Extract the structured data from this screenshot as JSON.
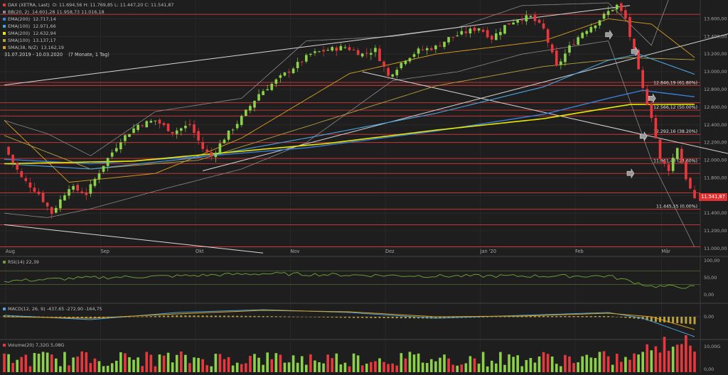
{
  "colors": {
    "background": "#1e1e1e",
    "grid": "#2f2f2f",
    "up_candle": "#8bd14a",
    "down_candle": "#e8383d",
    "fib_line": "#d63a3a",
    "ema200": "#3b7fd9",
    "ema100": "#4aa3df",
    "sma200": "#e8e800",
    "sma100": "#b8a040",
    "sma38": "#d9a020",
    "bollinger": "#8a8a8a",
    "trendline": "#d8d8d8",
    "rsi": "#6a9a3a",
    "macd": "#4aa3df",
    "signal": "#d9a020",
    "volume_up": "#8bd14a",
    "volume_down": "#e8383d"
  },
  "legend": [
    {
      "label": "DAX (XETRA, Last)",
      "values": "O: 11.694,56  H: 11.769,85  L: 11.447,20  C: 11.541,87",
      "color": "#e8383d"
    },
    {
      "label": "BB(20, 2)",
      "values": "14.601,28  11.958,73  11.016,18",
      "color": "#8a8a8a"
    },
    {
      "label": "EMA(200)",
      "values": "12.717,14",
      "color": "#3b7fd9"
    },
    {
      "label": "EMA(100)",
      "values": "12.971,66",
      "color": "#4aa3df"
    },
    {
      "label": "SMA(200)",
      "values": "12.632,94",
      "color": "#e8e800"
    },
    {
      "label": "SMA(100)",
      "values": "13.137,17",
      "color": "#b8a040"
    },
    {
      "label": "SMA(38, N/Z)",
      "values": "13.162,19",
      "color": "#d9a020"
    }
  ],
  "range_label": "31.07.2019 - 10.03.2020",
  "range_detail": "(7 Monate, 1 Tag)",
  "current_price_label": "11.541,87",
  "rsi_legend": {
    "label": "RSI(14)",
    "value": "22,39"
  },
  "macd_legend": {
    "label": "MACD(12, 26, 9)",
    "values": "-437,65  -272,90  -164,75"
  },
  "volume_legend": {
    "label": "Volume(20)",
    "values": "7,32G  5,08G"
  },
  "chart_data": {
    "type": "candlestick",
    "title": "DAX (XETRA, Last)",
    "x_axis_labels": [
      "Aug",
      "Sep",
      "Okt",
      "Nov",
      "Dez",
      "Jan '20",
      "Feb",
      "Mär"
    ],
    "y_axis": {
      "min": 11000,
      "max": 13700,
      "ticks": [
        "11.000,00",
        "11.200,00",
        "11.400,00",
        "11.600,00",
        "11.800,00",
        "12.000,00",
        "12.200,00",
        "12.400,00",
        "12.600,00",
        "12.800,00",
        "13.000,00",
        "13.200,00",
        "13.400,00",
        "13.600,00"
      ]
    },
    "fibonacci_levels": [
      {
        "value": 12846.19,
        "label": "12.846,19 (61.80%)"
      },
      {
        "value": 12566.12,
        "label": "12.566,12 (50.00%)"
      },
      {
        "value": 12292.16,
        "label": "12.292,16 (38.20%)"
      },
      {
        "value": 11961.43,
        "label": "11.961,43 (23.60%)"
      },
      {
        "value": 11445.55,
        "label": "11.445,55 (0.00%)"
      }
    ],
    "support_resistance": [
      13650,
      12880,
      12650,
      12500,
      12200,
      12020,
      11850,
      11630,
      11270,
      11020
    ],
    "close_anchors": [
      [
        0,
        12150
      ],
      [
        4,
        11800
      ],
      [
        8,
        11620
      ],
      [
        11,
        11400
      ],
      [
        15,
        11700
      ],
      [
        19,
        11620
      ],
      [
        23,
        11950
      ],
      [
        27,
        12230
      ],
      [
        31,
        12400
      ],
      [
        35,
        12450
      ],
      [
        39,
        12320
      ],
      [
        43,
        12400
      ],
      [
        46,
        12130
      ],
      [
        48,
        12040
      ],
      [
        51,
        12250
      ],
      [
        55,
        12480
      ],
      [
        59,
        12750
      ],
      [
        63,
        12900
      ],
      [
        67,
        13050
      ],
      [
        71,
        13200
      ],
      [
        75,
        13250
      ],
      [
        79,
        13280
      ],
      [
        83,
        13200
      ],
      [
        86,
        13250
      ],
      [
        89,
        12950
      ],
      [
        93,
        13150
      ],
      [
        96,
        13240
      ],
      [
        100,
        13280
      ],
      [
        103,
        13380
      ],
      [
        107,
        13450
      ],
      [
        110,
        13500
      ],
      [
        113,
        13380
      ],
      [
        116,
        13520
      ],
      [
        119,
        13600
      ],
      [
        122,
        13620
      ],
      [
        125,
        13480
      ],
      [
        128,
        13050
      ],
      [
        131,
        13280
      ],
      [
        134,
        13450
      ],
      [
        137,
        13550
      ],
      [
        140,
        13680
      ],
      [
        142,
        13750
      ],
      [
        144,
        13600
      ],
      [
        146,
        13200
      ],
      [
        148,
        12800
      ],
      [
        150,
        12500
      ],
      [
        152,
        12000
      ],
      [
        154,
        11900
      ],
      [
        156,
        12150
      ],
      [
        158,
        11800
      ],
      [
        160,
        11540
      ]
    ],
    "ema200": [
      [
        0,
        12010
      ],
      [
        20,
        11960
      ],
      [
        45,
        12040
      ],
      [
        70,
        12140
      ],
      [
        100,
        12330
      ],
      [
        125,
        12520
      ],
      [
        140,
        12700
      ],
      [
        148,
        12790
      ],
      [
        160,
        12717
      ]
    ],
    "ema100": [
      [
        0,
        11960
      ],
      [
        20,
        11900
      ],
      [
        45,
        12030
      ],
      [
        70,
        12250
      ],
      [
        100,
        12530
      ],
      [
        125,
        12830
      ],
      [
        140,
        13130
      ],
      [
        147,
        13200
      ],
      [
        160,
        12972
      ]
    ],
    "sma200": [
      [
        0,
        11960
      ],
      [
        30,
        11990
      ],
      [
        50,
        12080
      ],
      [
        75,
        12190
      ],
      [
        100,
        12340
      ],
      [
        125,
        12470
      ],
      [
        145,
        12630
      ],
      [
        160,
        12633
      ]
    ],
    "sma100": [
      [
        0,
        12280
      ],
      [
        20,
        11900
      ],
      [
        45,
        12000
      ],
      [
        70,
        12380
      ],
      [
        100,
        12840
      ],
      [
        125,
        13060
      ],
      [
        145,
        13160
      ],
      [
        160,
        13137
      ]
    ],
    "sma38": [
      [
        0,
        12450
      ],
      [
        15,
        11750
      ],
      [
        35,
        11850
      ],
      [
        55,
        12250
      ],
      [
        80,
        12980
      ],
      [
        100,
        13200
      ],
      [
        125,
        13350
      ],
      [
        140,
        13600
      ],
      [
        150,
        13540
      ],
      [
        160,
        13162
      ]
    ],
    "bb_upper": [
      [
        0,
        12450
      ],
      [
        10,
        12300
      ],
      [
        20,
        12050
      ],
      [
        35,
        12550
      ],
      [
        55,
        12700
      ],
      [
        70,
        13350
      ],
      [
        90,
        13400
      ],
      [
        105,
        13500
      ],
      [
        120,
        13750
      ],
      [
        140,
        13780
      ],
      [
        150,
        13300
      ],
      [
        160,
        14601
      ]
    ],
    "bb_lower": [
      [
        0,
        11400
      ],
      [
        10,
        11350
      ],
      [
        20,
        11450
      ],
      [
        35,
        11650
      ],
      [
        55,
        11900
      ],
      [
        70,
        12200
      ],
      [
        90,
        12900
      ],
      [
        105,
        13000
      ],
      [
        120,
        13200
      ],
      [
        140,
        13350
      ],
      [
        150,
        12000
      ],
      [
        160,
        11016
      ]
    ],
    "trendlines": [
      {
        "from": [
          0,
          12850
        ],
        "to": [
          145,
          13750
        ]
      },
      {
        "from": [
          0,
          11270
        ],
        "to": [
          60,
          10950
        ]
      },
      {
        "from": [
          46,
          11880
        ],
        "to": [
          193,
          13750
        ]
      },
      {
        "from": [
          83,
          13000
        ],
        "to": [
          193,
          11800
        ]
      }
    ],
    "rsi": {
      "ylim": [
        0,
        100
      ],
      "ticks": [
        "0,00",
        "50,00",
        "100,00"
      ],
      "levels": [
        70,
        30
      ],
      "values": [
        [
          0,
          40
        ],
        [
          20,
          50
        ],
        [
          40,
          55
        ],
        [
          60,
          62
        ],
        [
          80,
          58
        ],
        [
          100,
          55
        ],
        [
          120,
          55
        ],
        [
          140,
          55
        ],
        [
          150,
          25
        ],
        [
          160,
          22.39
        ]
      ]
    },
    "macd": {
      "ticks": [
        "0,00"
      ],
      "histogram_last": -164.75,
      "macd_last": -437.65,
      "signal_last": -272.9
    },
    "volume": {
      "ticks": [
        "10,00G",
        "0,00"
      ],
      "last": "7,32G",
      "avg": "5,08G"
    }
  }
}
